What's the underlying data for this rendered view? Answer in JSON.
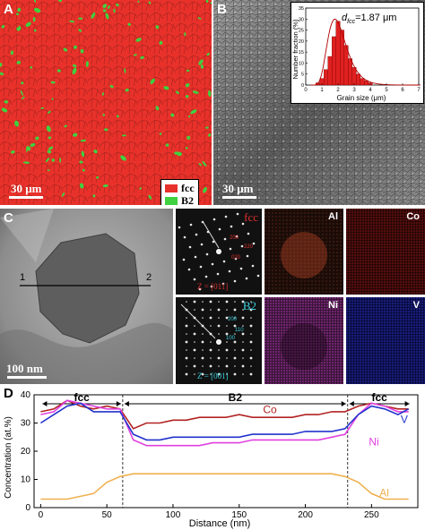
{
  "panels": {
    "a": {
      "label": "A",
      "scale_bar": "30 μm",
      "legend": [
        {
          "name": "fcc",
          "color": "#e8312a"
        },
        {
          "name": "B2",
          "color": "#3fd13f"
        }
      ]
    },
    "b": {
      "label": "B",
      "scale_bar": "30 μm",
      "inset": {
        "annotation": "d",
        "annotation_sub": "fcc",
        "annotation_value": "=1.87 μm",
        "ylabel": "Number fraction (%)",
        "xlabel": "Grain size (μm)",
        "x_ticks": [
          "0",
          "1",
          "2",
          "3",
          "4",
          "5",
          "6",
          "7"
        ],
        "y_ticks": [
          "0",
          "5",
          "10",
          "15",
          "20",
          "25",
          "30",
          "35"
        ]
      }
    },
    "c": {
      "label": "C",
      "scale_bar": "100 nm",
      "line_start": "1",
      "line_end": "2",
      "saed_fcc": {
        "phase": "fcc",
        "zone": "Z = [011]",
        "spots": [
          "200",
          "220",
          "020"
        ]
      },
      "saed_b2": {
        "phase": "B2",
        "zone": "Z = [001]",
        "spots": [
          "200",
          "110",
          "100"
        ]
      },
      "maps": [
        {
          "element": "Al",
          "color": "#d4502a"
        },
        {
          "element": "Co",
          "color": "#b21f1f"
        },
        {
          "element": "Ni",
          "color": "#b23bb0"
        },
        {
          "element": "V",
          "color": "#2a34c8"
        }
      ]
    },
    "d": {
      "label": "D",
      "phases": [
        {
          "name": "fcc",
          "from": 0,
          "to": 62
        },
        {
          "name": "B2",
          "from": 62,
          "to": 232
        },
        {
          "name": "fcc",
          "from": 232,
          "to": 280
        }
      ]
    }
  },
  "chart_data": [
    {
      "type": "bar",
      "panel": "B-inset",
      "xlabel": "Grain size (μm)",
      "ylabel": "Number fraction (%)",
      "xlim": [
        0,
        7
      ],
      "ylim": [
        0,
        35
      ],
      "bin_width": 0.25,
      "x": [
        0.75,
        1.0,
        1.25,
        1.5,
        1.75,
        2.0,
        2.25,
        2.5,
        2.75,
        3.0,
        3.25,
        3.5,
        3.75,
        4.0
      ],
      "values": [
        1,
        3,
        7,
        13,
        22,
        29,
        25,
        18,
        12,
        8,
        5,
        3,
        2,
        1
      ]
    },
    {
      "type": "line",
      "panel": "D",
      "xlabel": "Distance (nm)",
      "ylabel": "Concentration (at.%)",
      "xlim": [
        -5,
        285
      ],
      "ylim": [
        0,
        40
      ],
      "x_ticks": [
        0,
        50,
        100,
        150,
        200,
        250
      ],
      "y_ticks": [
        0,
        10,
        20,
        30,
        40
      ],
      "x": [
        0,
        10,
        20,
        30,
        40,
        50,
        60,
        70,
        80,
        90,
        100,
        110,
        120,
        130,
        140,
        150,
        160,
        170,
        180,
        190,
        200,
        210,
        220,
        230,
        240,
        250,
        260,
        270,
        278
      ],
      "series": [
        {
          "name": "Co",
          "color": "#b22222",
          "values": [
            34,
            35,
            38,
            36,
            35,
            36,
            35,
            28,
            30,
            30,
            31,
            31,
            32,
            32,
            32,
            33,
            32,
            32,
            32,
            32,
            33,
            33,
            34,
            34,
            36,
            37,
            36,
            35,
            35
          ]
        },
        {
          "name": "Ni",
          "color": "#e040e0",
          "values": [
            33,
            34,
            38,
            37,
            36,
            35,
            35,
            24,
            22,
            22,
            22,
            22,
            22,
            23,
            23,
            23,
            24,
            24,
            24,
            24,
            24,
            24,
            25,
            26,
            33,
            37,
            36,
            34,
            34
          ]
        },
        {
          "name": "V",
          "color": "#2233cc",
          "values": [
            30,
            33,
            36,
            37,
            34,
            34,
            34,
            26,
            24,
            24,
            25,
            25,
            25,
            25,
            25,
            25,
            26,
            26,
            26,
            26,
            27,
            27,
            27,
            28,
            33,
            36,
            35,
            33,
            35
          ]
        },
        {
          "name": "Al",
          "color": "#f0b050",
          "values": [
            3,
            3,
            3,
            4,
            5,
            9,
            11,
            12,
            12,
            12,
            12,
            12,
            12,
            12,
            12,
            12,
            12,
            12,
            12,
            12,
            12,
            12,
            12,
            11,
            9,
            5,
            3,
            3,
            3
          ]
        }
      ]
    }
  ]
}
